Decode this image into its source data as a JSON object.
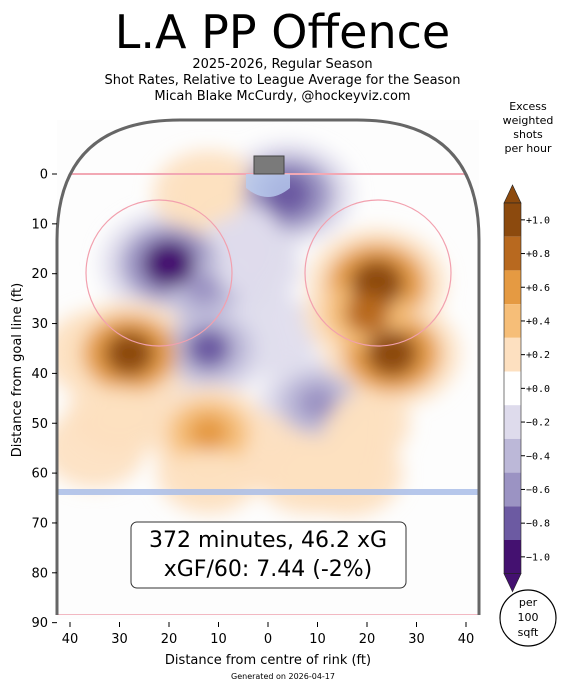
{
  "header": {
    "title": "L.A PP Offence",
    "subtitle_1": "2025-2026, Regular Season",
    "subtitle_2": "Shot Rates, Relative to League Average for the Season",
    "subtitle_3": "Micah Blake McCurdy, @hockeyviz.com"
  },
  "colorbar": {
    "title_lines": [
      "Excess",
      "weighted",
      "shots",
      "per hour"
    ],
    "ticks": [
      "+1.0",
      "+0.8",
      "+0.6",
      "+0.4",
      "+0.2",
      "+0.0",
      "−0.2",
      "−0.4",
      "−0.6",
      "−0.8",
      "−1.0"
    ],
    "colors": [
      "#8c4a0e",
      "#b8691f",
      "#e59a42",
      "#f6be78",
      "#fde0c0",
      "#ffffff",
      "#dedbec",
      "#bcb8d8",
      "#9b93c3",
      "#6c5aa2",
      "#441170"
    ],
    "unit_lines": [
      "per",
      "100",
      "sqft"
    ]
  },
  "summary": {
    "line1": "372 minutes, 46.2 xG",
    "line2": "xGF/60: 7.44 (-2%)"
  },
  "footer": "Generated on 2026-04-17",
  "chart_data": {
    "type": "heatmap",
    "title": "L.A PP Offence",
    "xlabel": "Distance from centre of rink (ft)",
    "ylabel": "Distance from goal line (ft)",
    "xlim": [
      42.5,
      -42.5
    ],
    "ylim": [
      90,
      -11
    ],
    "x_ticks": [
      "40",
      "30",
      "20",
      "10",
      "0",
      "10",
      "20",
      "30",
      "40"
    ],
    "y_ticks": [
      "0",
      "10",
      "20",
      "30",
      "40",
      "50",
      "60",
      "70",
      "80",
      "90"
    ],
    "value_range": [
      -1.0,
      1.0
    ],
    "blobs": [
      {
        "x": 20,
        "y": 18,
        "value": -0.95
      },
      {
        "x": 13,
        "y": 23,
        "value": -0.5
      },
      {
        "x": -4,
        "y": 4,
        "value": -0.85
      },
      {
        "x": 5,
        "y": 12,
        "value": -0.45
      },
      {
        "x": 4,
        "y": 19,
        "value": -0.3
      },
      {
        "x": 12,
        "y": 35,
        "value": -0.75
      },
      {
        "x": 0,
        "y": 32,
        "value": -0.25
      },
      {
        "x": -10,
        "y": 46,
        "value": -0.6
      },
      {
        "x": 22,
        "y": 46,
        "value": -0.15
      },
      {
        "x": 12,
        "y": 4,
        "value": 0.45
      },
      {
        "x": -22,
        "y": 22,
        "value": 1.0
      },
      {
        "x": -25,
        "y": 36,
        "value": 0.95
      },
      {
        "x": -20,
        "y": 28,
        "value": 0.75
      },
      {
        "x": -18,
        "y": 50,
        "value": 0.35
      },
      {
        "x": -16,
        "y": 60,
        "value": 0.45
      },
      {
        "x": -8,
        "y": 60,
        "value": 0.3
      },
      {
        "x": 34,
        "y": 36,
        "value": 0.45
      },
      {
        "x": 28,
        "y": 36,
        "value": 0.9
      },
      {
        "x": 30,
        "y": 48,
        "value": 0.3
      },
      {
        "x": 35,
        "y": 55,
        "value": 0.25
      },
      {
        "x": 12,
        "y": 52,
        "value": 0.65
      },
      {
        "x": 12,
        "y": 60,
        "value": 0.3
      },
      {
        "x": 0,
        "y": 56,
        "value": 0.2
      }
    ]
  }
}
